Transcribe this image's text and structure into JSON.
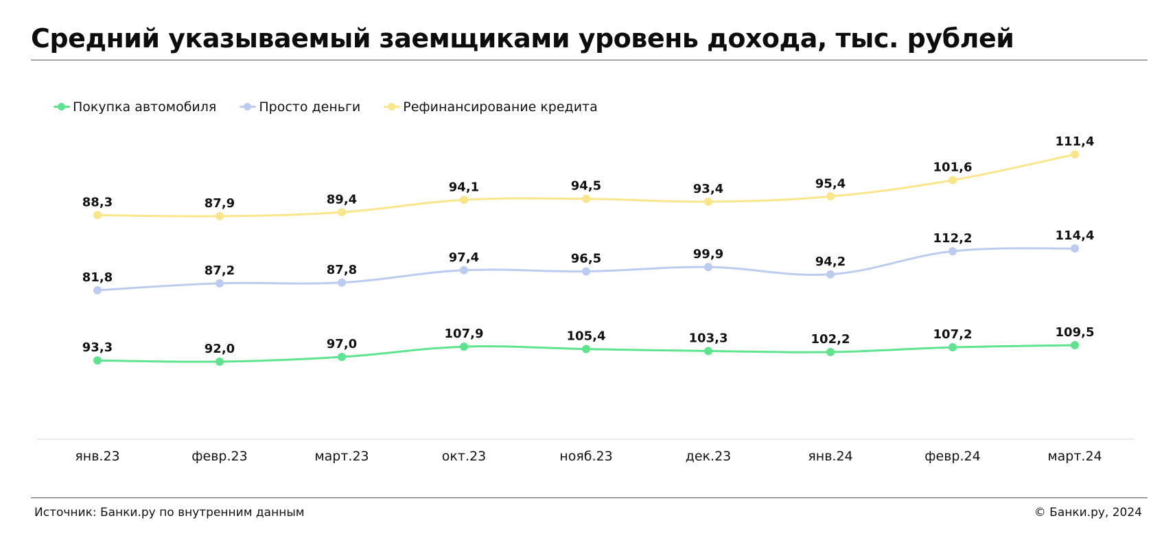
{
  "title": "Средний указываемый заемщиками уровень дохода, тыс. рублей",
  "footer": {
    "source": "Источник: Банки.ру по внутренним данным",
    "copyright": "© Банки.ру, 2024"
  },
  "colors": {
    "green": "#5ee38f",
    "blue": "#bccbf0",
    "yellow": "#fae68a",
    "axis": "#e2e2e2"
  },
  "chart_data": {
    "type": "line",
    "title": "Средний указываемый заемщиками уровень дохода, тыс. рублей",
    "xlabel": "",
    "ylabel": "",
    "grid": false,
    "legend_position": "top-left",
    "categories": [
      "янв.23",
      "февр.23",
      "март.23",
      "окт.23",
      "нояб.23",
      "дек.23",
      "янв.24",
      "февр.24",
      "март.24"
    ],
    "series": [
      {
        "name": "Покупка автомобиля",
        "color": "#5ee38f",
        "values": [
          93.3,
          92.0,
          97.0,
          107.9,
          105.4,
          103.3,
          102.2,
          107.2,
          109.5
        ],
        "labels": [
          "93,3",
          "92,0",
          "97,0",
          "107,9",
          "105,4",
          "103,3",
          "102,2",
          "107,2",
          "109,5"
        ]
      },
      {
        "name": "Просто деньги",
        "color": "#bccbf0",
        "values": [
          81.8,
          87.2,
          87.8,
          97.4,
          96.5,
          99.9,
          94.2,
          112.2,
          114.4
        ],
        "labels": [
          "81,8",
          "87,2",
          "87,8",
          "97,4",
          "96,5",
          "99,9",
          "94,2",
          "112,2",
          "114,4"
        ]
      },
      {
        "name": "Рефинансирование кредита",
        "color": "#fae68a",
        "values": [
          88.3,
          87.9,
          89.4,
          94.1,
          94.5,
          93.4,
          95.4,
          101.6,
          111.4
        ],
        "labels": [
          "88,3",
          "87,9",
          "89,4",
          "94,1",
          "94,5",
          "93,4",
          "95,4",
          "101,6",
          "111,4"
        ]
      }
    ]
  }
}
